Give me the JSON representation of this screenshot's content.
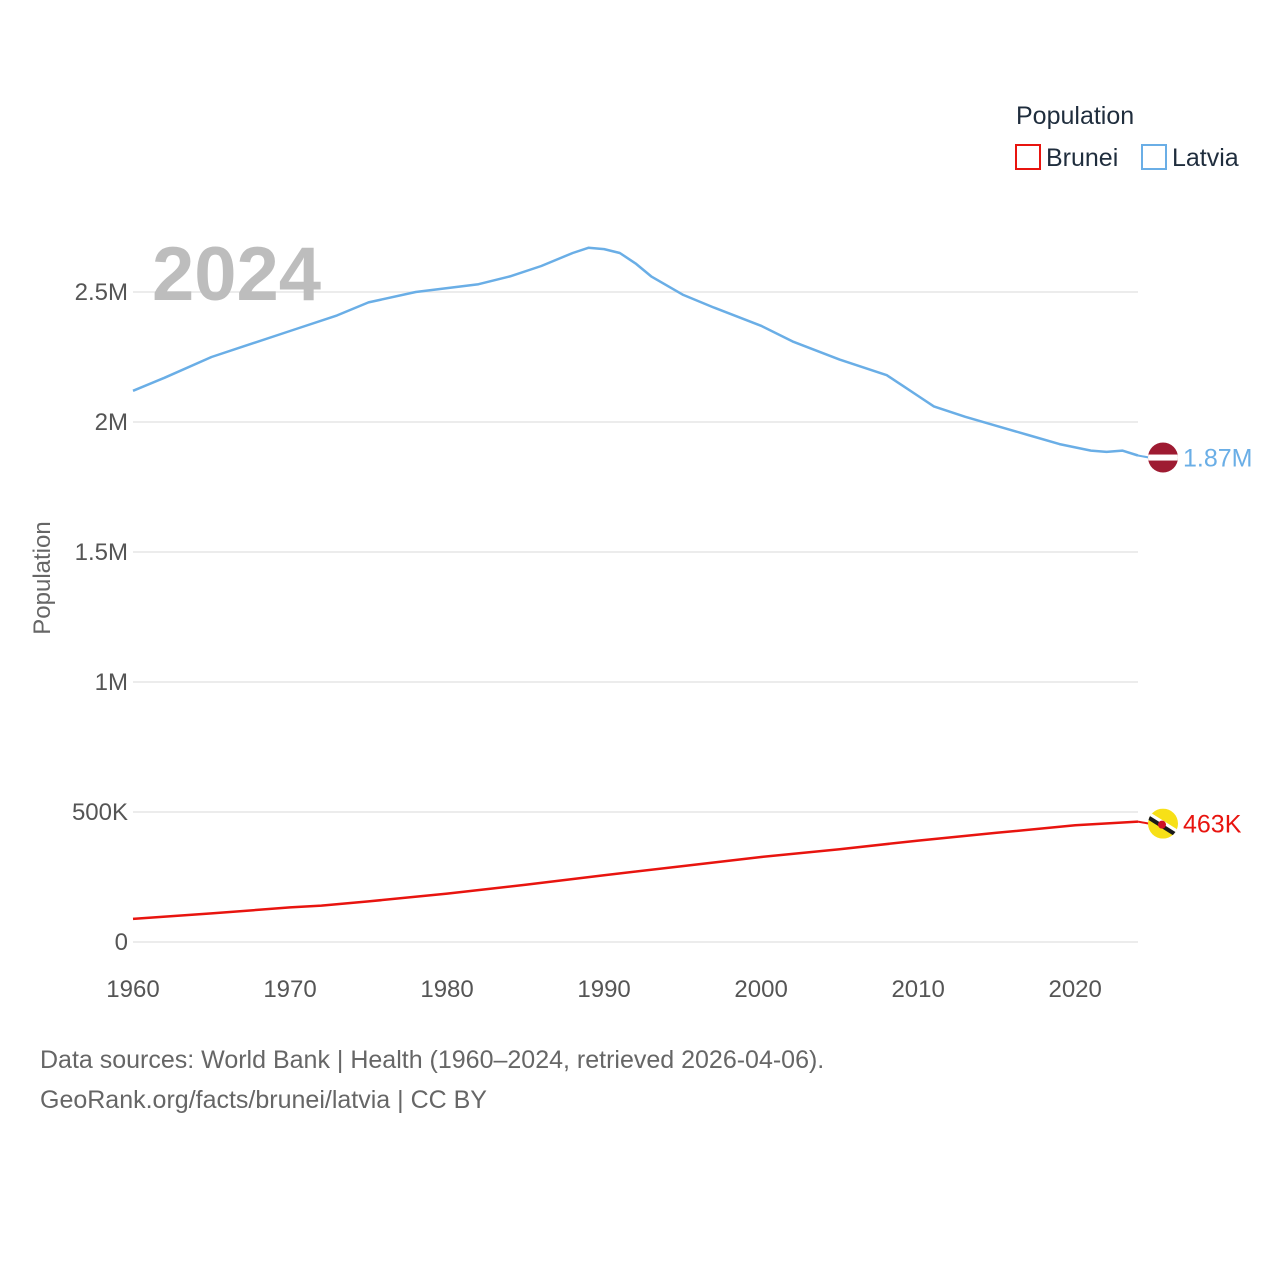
{
  "chart_data": {
    "type": "line",
    "title": "",
    "year_label": "2024",
    "xlabel": "",
    "ylabel": "Population",
    "xlim": [
      1960,
      2024
    ],
    "ylim": [
      0,
      2750000
    ],
    "x_ticks": [
      1960,
      1970,
      1980,
      1990,
      2000,
      2010,
      2020
    ],
    "x_tick_labels": [
      "1960",
      "1970",
      "1980",
      "1990",
      "2000",
      "2010",
      "2020"
    ],
    "y_ticks": [
      0,
      500000,
      1000000,
      1500000,
      2000000,
      2500000
    ],
    "y_tick_labels": [
      "0",
      "500K",
      "1M",
      "1.5M",
      "2M",
      "2.5M"
    ],
    "grid": true,
    "legend": {
      "title": "Population",
      "position": "top-right",
      "items": [
        "Brunei",
        "Latvia"
      ]
    },
    "series": [
      {
        "name": "Brunei",
        "color": "#e8140f",
        "end_label": "463K",
        "flag": "brunei-flag",
        "points": [
          [
            1960,
            89000
          ],
          [
            1965,
            110000
          ],
          [
            1970,
            133000
          ],
          [
            1972,
            140000
          ],
          [
            1975,
            156000
          ],
          [
            1980,
            186000
          ],
          [
            1985,
            220000
          ],
          [
            1990,
            257000
          ],
          [
            1995,
            292000
          ],
          [
            2000,
            327000
          ],
          [
            2005,
            357000
          ],
          [
            2010,
            390000
          ],
          [
            2015,
            420000
          ],
          [
            2020,
            449000
          ],
          [
            2024,
            463000
          ]
        ]
      },
      {
        "name": "Latvia",
        "color": "#6aaee6",
        "end_label": "1.87M",
        "flag": "latvia-flag",
        "points": [
          [
            1960,
            2120000
          ],
          [
            1962,
            2170000
          ],
          [
            1965,
            2250000
          ],
          [
            1967,
            2290000
          ],
          [
            1970,
            2350000
          ],
          [
            1973,
            2410000
          ],
          [
            1975,
            2460000
          ],
          [
            1978,
            2500000
          ],
          [
            1980,
            2515000
          ],
          [
            1982,
            2530000
          ],
          [
            1984,
            2560000
          ],
          [
            1986,
            2600000
          ],
          [
            1988,
            2650000
          ],
          [
            1989,
            2670000
          ],
          [
            1990,
            2665000
          ],
          [
            1991,
            2650000
          ],
          [
            1992,
            2610000
          ],
          [
            1993,
            2560000
          ],
          [
            1995,
            2490000
          ],
          [
            1997,
            2440000
          ],
          [
            2000,
            2370000
          ],
          [
            2002,
            2310000
          ],
          [
            2005,
            2240000
          ],
          [
            2008,
            2180000
          ],
          [
            2009,
            2140000
          ],
          [
            2010,
            2100000
          ],
          [
            2011,
            2060000
          ],
          [
            2013,
            2020000
          ],
          [
            2015,
            1985000
          ],
          [
            2017,
            1950000
          ],
          [
            2019,
            1915000
          ],
          [
            2021,
            1890000
          ],
          [
            2022,
            1885000
          ],
          [
            2023,
            1890000
          ],
          [
            2024,
            1871000
          ]
        ]
      }
    ]
  },
  "footer": {
    "sources": "Data sources: World Bank | Health (1960–2024, retrieved 2026-04-06).",
    "attribution": "GeoRank.org/facts/brunei/latvia | CC BY"
  }
}
